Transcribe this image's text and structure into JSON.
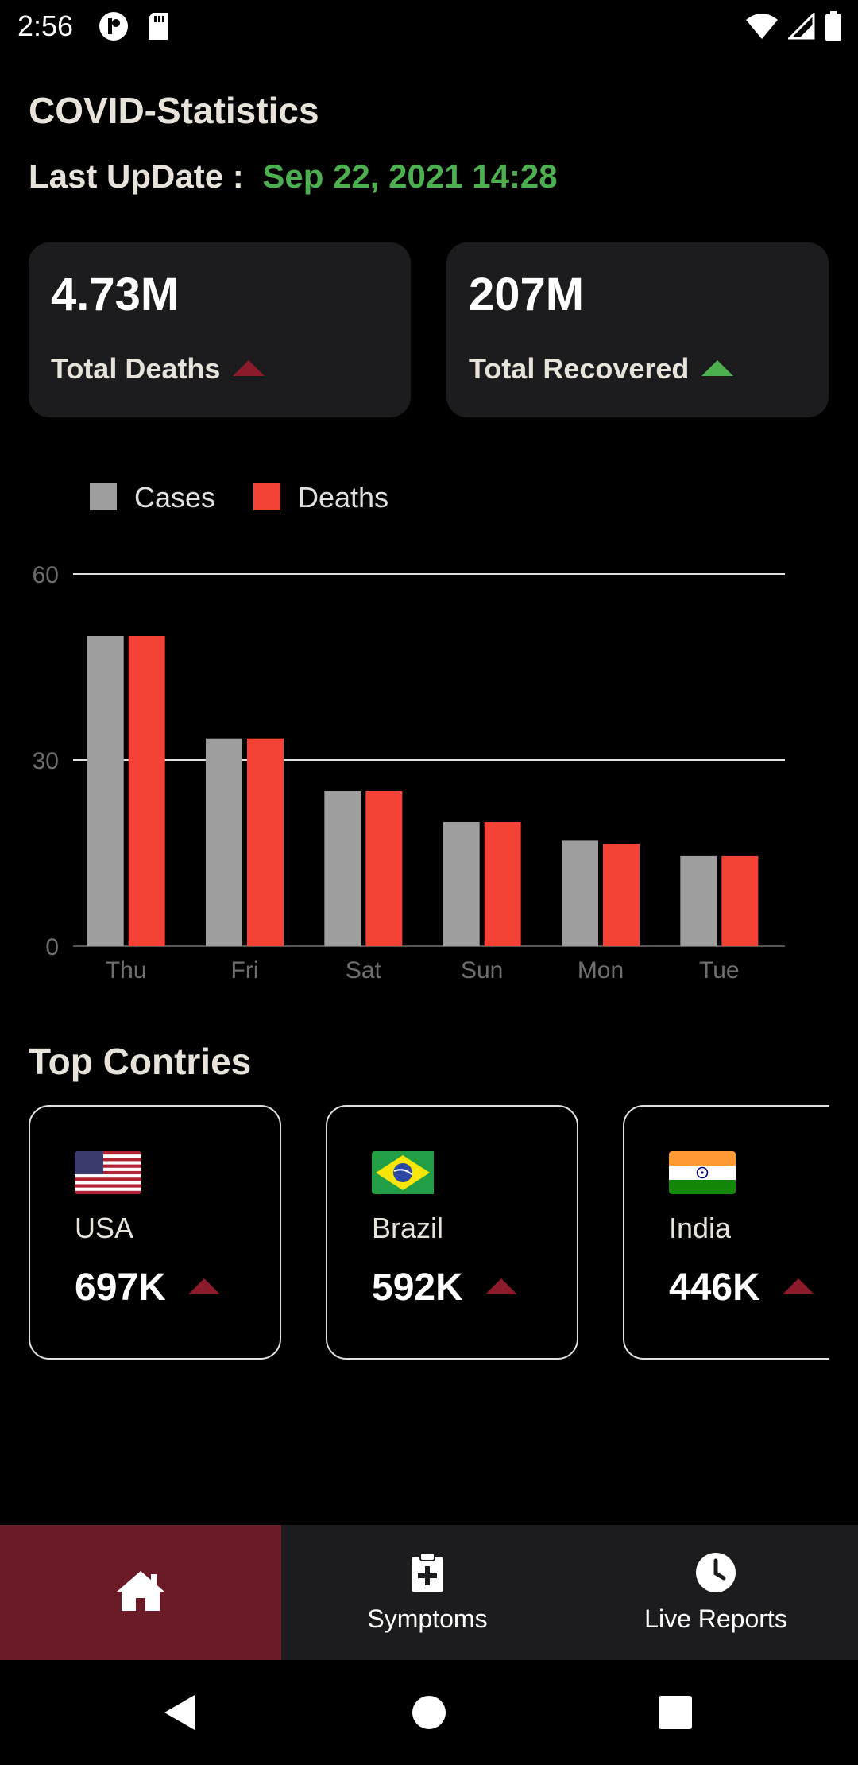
{
  "status_bar": {
    "time": "2:56",
    "left_icons": [
      "notification-app-icon",
      "sd-card-icon"
    ],
    "right_icons": [
      "wifi-icon",
      "cell-signal-icon",
      "battery-icon"
    ]
  },
  "header": {
    "title": "COVID-Statistics",
    "update_label": "Last UpDate :",
    "update_value": "Sep 22, 2021 14:28"
  },
  "summary": {
    "deaths": {
      "value": "4.73M",
      "label": "Total Deaths",
      "trend_color": "#8b1a2b"
    },
    "recovered": {
      "value": "207M",
      "label": "Total Recovered",
      "trend_color": "#4caf50"
    }
  },
  "chart_data": {
    "type": "bar",
    "categories": [
      "Thu",
      "Fri",
      "Sat",
      "Sun",
      "Mon",
      "Tue"
    ],
    "series": [
      {
        "name": "Cases",
        "color": "#9e9e9e",
        "values": [
          50,
          33.5,
          25,
          20,
          17,
          14.5
        ]
      },
      {
        "name": "Deaths",
        "color": "#f44336",
        "values": [
          50,
          33.5,
          25,
          20,
          16.5,
          14.5
        ]
      }
    ],
    "ylim": [
      0,
      60
    ],
    "yticks": [
      "0",
      "30",
      "60"
    ],
    "legend_position": "top-left",
    "grid": true
  },
  "top_countries": {
    "title": "Top Contries",
    "items": [
      {
        "name": "USA",
        "value": "697K",
        "flag": "usa-flag-icon"
      },
      {
        "name": "Brazil",
        "value": "592K",
        "flag": "brazil-flag-icon"
      },
      {
        "name": "India",
        "value": "446K",
        "flag": "india-flag-icon"
      }
    ],
    "trend_color": "#8b1a2b"
  },
  "bottom_nav": {
    "home": {
      "icon": "home-icon",
      "active_color": "#6b1a27"
    },
    "symptoms": {
      "label": "Symptoms",
      "icon": "clipboard-plus-icon"
    },
    "live_reports": {
      "label": "Live Reports",
      "icon": "clock-icon"
    }
  },
  "system_nav": [
    "back-icon",
    "home-circle-icon",
    "recents-icon"
  ]
}
